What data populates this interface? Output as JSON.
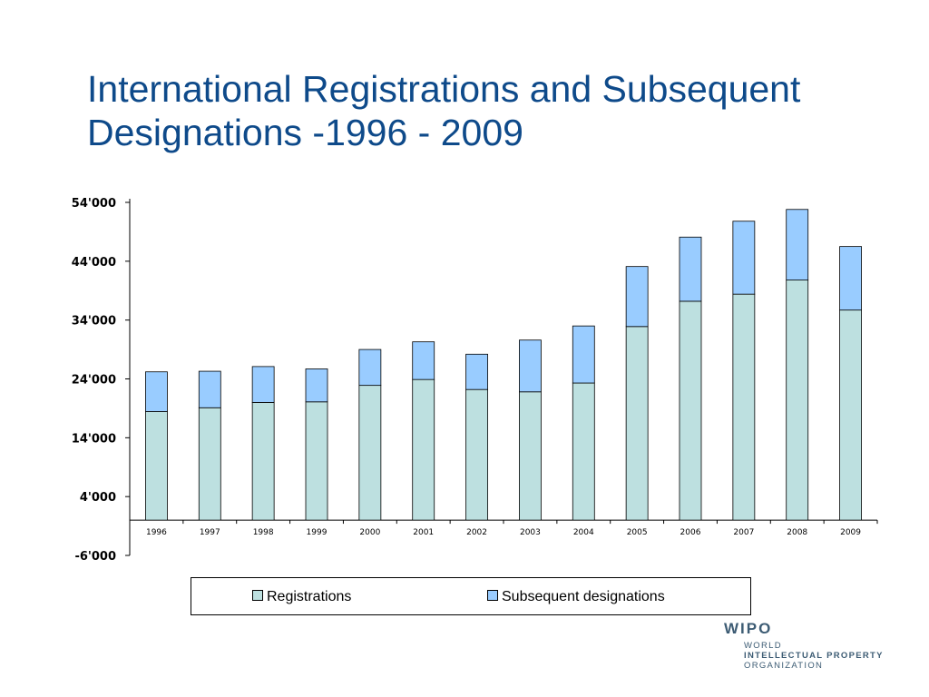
{
  "title": {
    "line1": "International Registrations and Subsequent",
    "line2": "Designations -1996 - 2009"
  },
  "chart_data": {
    "type": "bar",
    "stacked": true,
    "categories": [
      "1996",
      "1997",
      "1998",
      "1999",
      "2000",
      "2001",
      "2002",
      "2003",
      "2004",
      "2005",
      "2006",
      "2007",
      "2008",
      "2009"
    ],
    "series": [
      {
        "name": "Registrations",
        "color": "#bde0e0",
        "values": [
          18450,
          19100,
          20000,
          20100,
          22900,
          23900,
          22200,
          21800,
          23300,
          32900,
          37200,
          38400,
          40800,
          35700
        ]
      },
      {
        "name": "Subsequent designations",
        "color": "#99ccff",
        "values": [
          6750,
          6200,
          6100,
          5600,
          6100,
          6400,
          6000,
          8800,
          9700,
          10200,
          10900,
          12400,
          12000,
          10800
        ]
      }
    ],
    "ylim": [
      -6000,
      54000
    ],
    "yticks": [
      -6000,
      4000,
      14000,
      24000,
      34000,
      44000,
      54000
    ],
    "ytick_labels": [
      "-6'000",
      "4'000",
      "14'000",
      "24'000",
      "34'000",
      "44'000",
      "54'000"
    ],
    "grid": false,
    "legend_position": "bottom"
  },
  "logo": {
    "big": "WIPO",
    "line1": "WORLD",
    "line2": "INTELLECTUAL PROPERTY",
    "line3": "ORGANIZATION"
  }
}
